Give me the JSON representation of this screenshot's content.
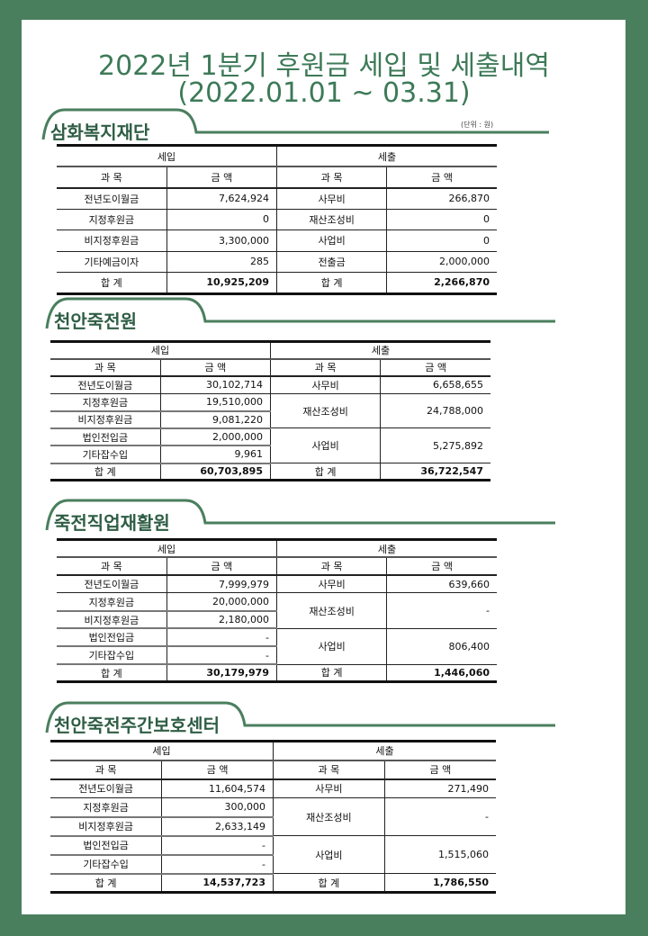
{
  "title": {
    "line1": "2022년 1분기 후원금  세입  및  세출내역",
    "line2": "(2022.01.01 ~  03.31)"
  },
  "unit_label": "(단위 : 원)",
  "headers": {
    "income": "세입",
    "expense": "세출",
    "item": "과 목",
    "amount": "금 액",
    "total": "합 계"
  },
  "sections": [
    {
      "name": "삼화복지재단",
      "income": [
        {
          "item": "전년도이월금",
          "amount": "7,624,924"
        },
        {
          "item": "지정후원금",
          "amount": "0"
        },
        {
          "item": "비지정후원금",
          "amount": "3,300,000"
        },
        {
          "item": "기타예금이자",
          "amount": "285"
        }
      ],
      "expense": [
        {
          "item": "사무비",
          "amount": "266,870",
          "span": 1
        },
        {
          "item": "재산조성비",
          "amount": "0",
          "span": 1
        },
        {
          "item": "사업비",
          "amount": "0",
          "span": 1
        },
        {
          "item": "전출금",
          "amount": "2,000,000",
          "span": 1
        }
      ],
      "income_total": "10,925,209",
      "expense_total": "2,266,870"
    },
    {
      "name": "천안죽전원",
      "income": [
        {
          "item": "전년도이월금",
          "amount": "30,102,714"
        },
        {
          "item": "지정후원금",
          "amount": "19,510,000"
        },
        {
          "item": "비지정후원금",
          "amount": "9,081,220"
        },
        {
          "item": "법인전입금",
          "amount": "2,000,000"
        },
        {
          "item": "기타잡수입",
          "amount": "9,961"
        }
      ],
      "expense": [
        {
          "item": "사무비",
          "amount": "6,658,655",
          "span": 1
        },
        {
          "item": "재산조성비",
          "amount": "24,788,000",
          "span": 2
        },
        {
          "item": "사업비",
          "amount": "5,275,892",
          "span": 2
        }
      ],
      "income_total": "60,703,895",
      "expense_total": "36,722,547"
    },
    {
      "name": "죽전직업재활원",
      "income": [
        {
          "item": "전년도이월금",
          "amount": "7,999,979"
        },
        {
          "item": "지정후원금",
          "amount": "20,000,000"
        },
        {
          "item": "비지정후원금",
          "amount": "2,180,000"
        },
        {
          "item": "법인전입금",
          "amount": "-"
        },
        {
          "item": "기타잡수입",
          "amount": "-"
        }
      ],
      "expense": [
        {
          "item": "사무비",
          "amount": "639,660",
          "span": 1
        },
        {
          "item": "재산조성비",
          "amount": "-",
          "span": 2
        },
        {
          "item": "사업비",
          "amount": "806,400",
          "span": 2
        }
      ],
      "income_total": "30,179,979",
      "expense_total": "1,446,060"
    },
    {
      "name": "천안죽전주간보호센터",
      "income": [
        {
          "item": "전년도이월금",
          "amount": "11,604,574"
        },
        {
          "item": "지정후원금",
          "amount": "300,000"
        },
        {
          "item": "비지정후원금",
          "amount": "2,633,149"
        },
        {
          "item": "법인전입금",
          "amount": "-"
        },
        {
          "item": "기타잡수입",
          "amount": "-"
        }
      ],
      "expense": [
        {
          "item": "사무비",
          "amount": "271,490",
          "span": 1
        },
        {
          "item": "재산조성비",
          "amount": "-",
          "span": 2
        },
        {
          "item": "사업비",
          "amount": "1,515,060",
          "span": 2
        }
      ],
      "income_total": "14,537,723",
      "expense_total": "1,786,550"
    }
  ],
  "colors": {
    "background": "#4a7f5e",
    "title": "#3d7a58",
    "section_title": "#2f5e45"
  }
}
